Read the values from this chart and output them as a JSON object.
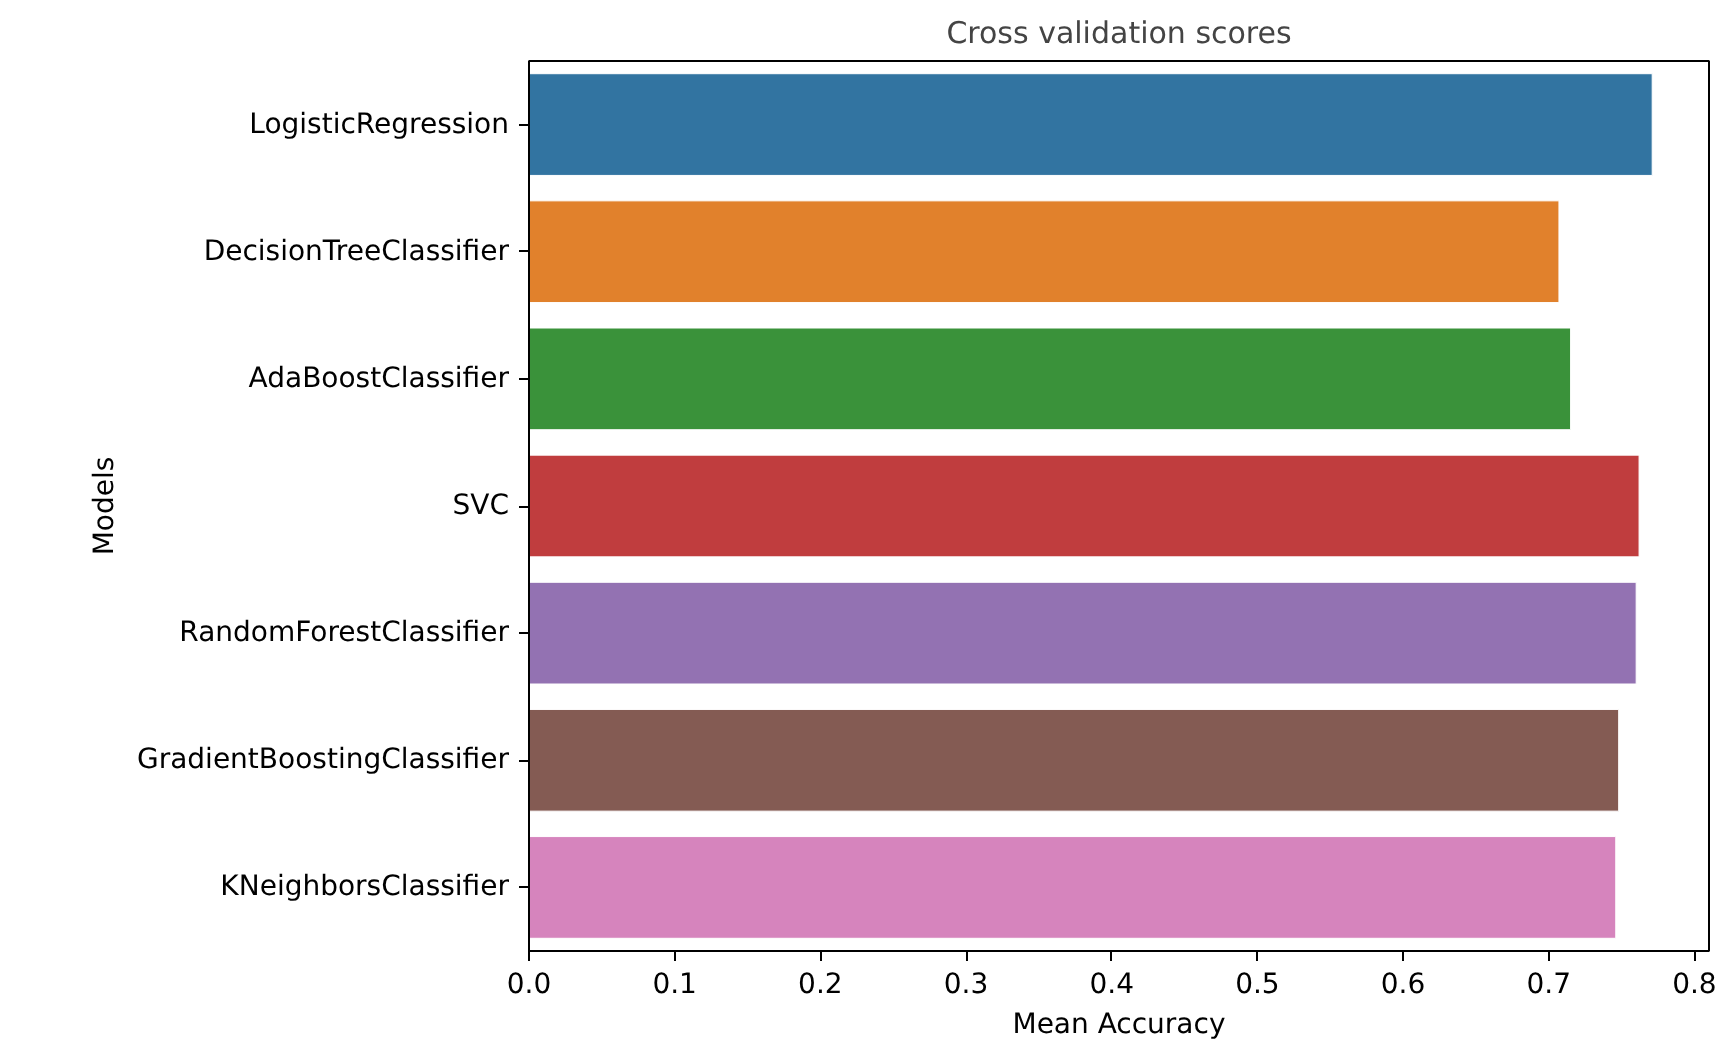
{
  "chart_data": {
    "type": "bar",
    "orientation": "horizontal",
    "title": "Cross validation scores",
    "xlabel": "Mean Accuracy",
    "ylabel": "Models",
    "categories": [
      "LogisticRegression",
      "DecisionTreeClassifier",
      "AdaBoostClassifier",
      "SVC",
      "RandomForestClassifier",
      "GradientBoostingClassifier",
      "KNeighborsClassifier"
    ],
    "values": [
      0.771,
      0.707,
      0.715,
      0.762,
      0.76,
      0.748,
      0.746
    ],
    "colors": [
      "#3274a1",
      "#e1812c",
      "#3a923a",
      "#c03d3e",
      "#9372b2",
      "#845b53",
      "#d684bd"
    ],
    "xlim": [
      0,
      0.81
    ],
    "xticks": [
      {
        "value": 0,
        "label": "0.0"
      },
      0.1,
      0.2,
      0.3,
      0.4,
      0.5,
      0.6,
      0.7,
      0.8
    ],
    "grid": false
  }
}
